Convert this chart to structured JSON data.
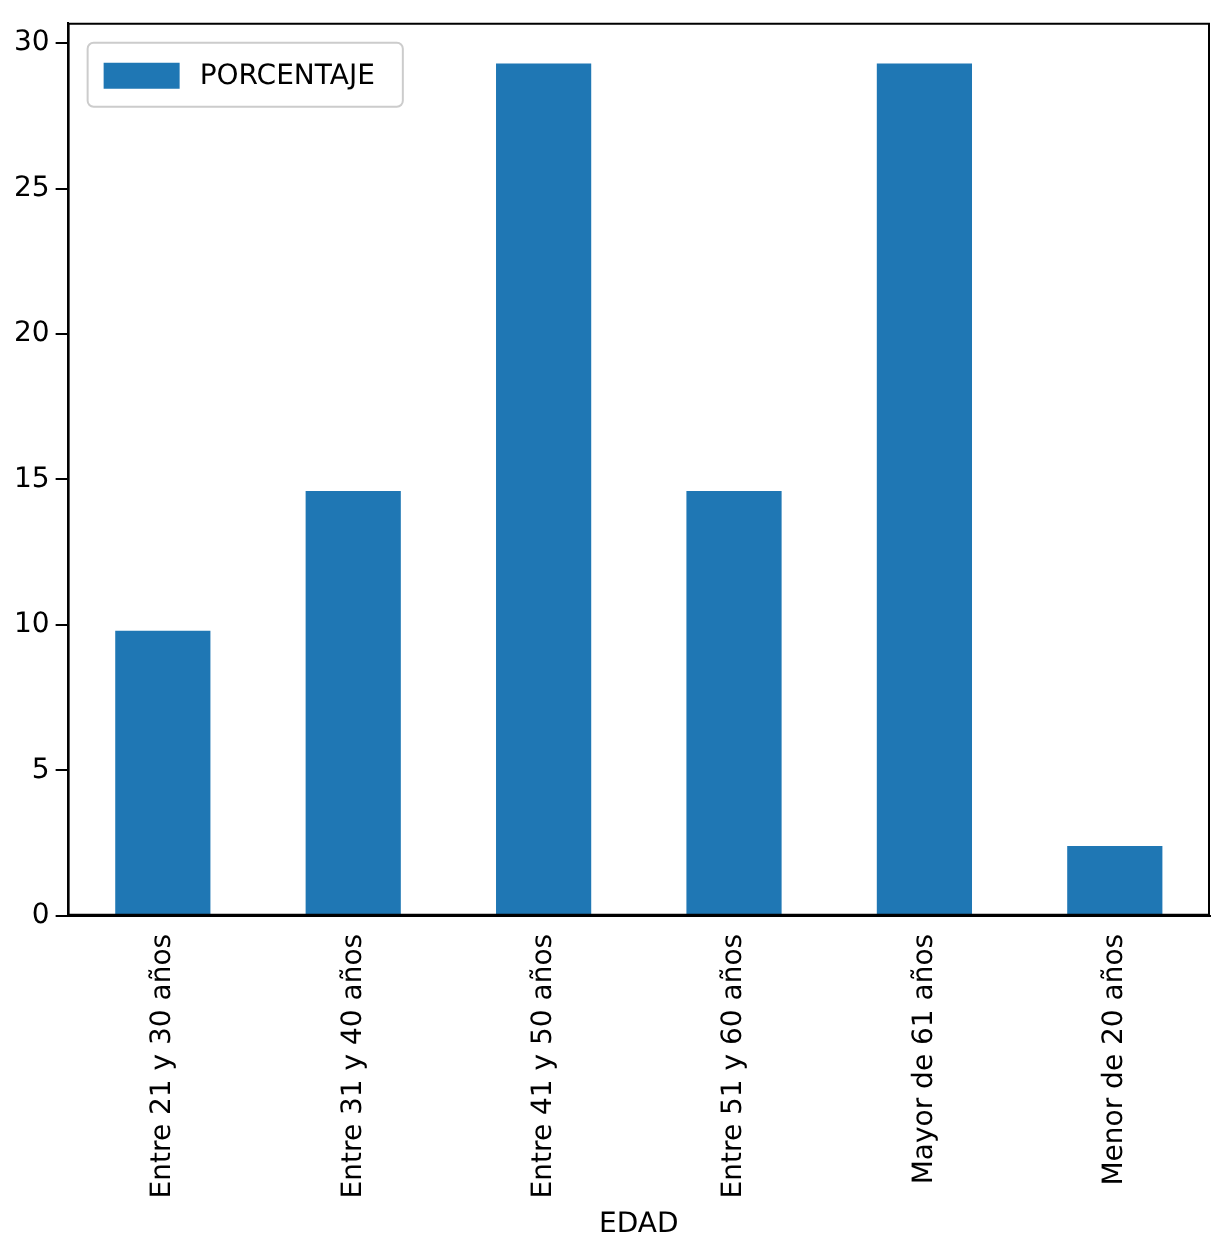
{
  "chart_data": {
    "type": "bar",
    "xlabel": "EDAD",
    "categories": [
      "Entre 21 y 30 años",
      "Entre 31 y 40 años",
      "Entre 41 y 50 años",
      "Entre 51 y 60 años",
      "Mayor de 61 años",
      "Menor de 20 años"
    ],
    "series": [
      {
        "name": "PORCENTAJE",
        "color": "#1f77b4",
        "values": [
          9.8,
          14.6,
          29.3,
          14.6,
          29.3,
          2.4
        ]
      }
    ],
    "ylim": [
      0,
      30.7
    ],
    "yticks": [
      0,
      5,
      10,
      15,
      20,
      25,
      30
    ],
    "grid": false,
    "legend": "top left"
  }
}
